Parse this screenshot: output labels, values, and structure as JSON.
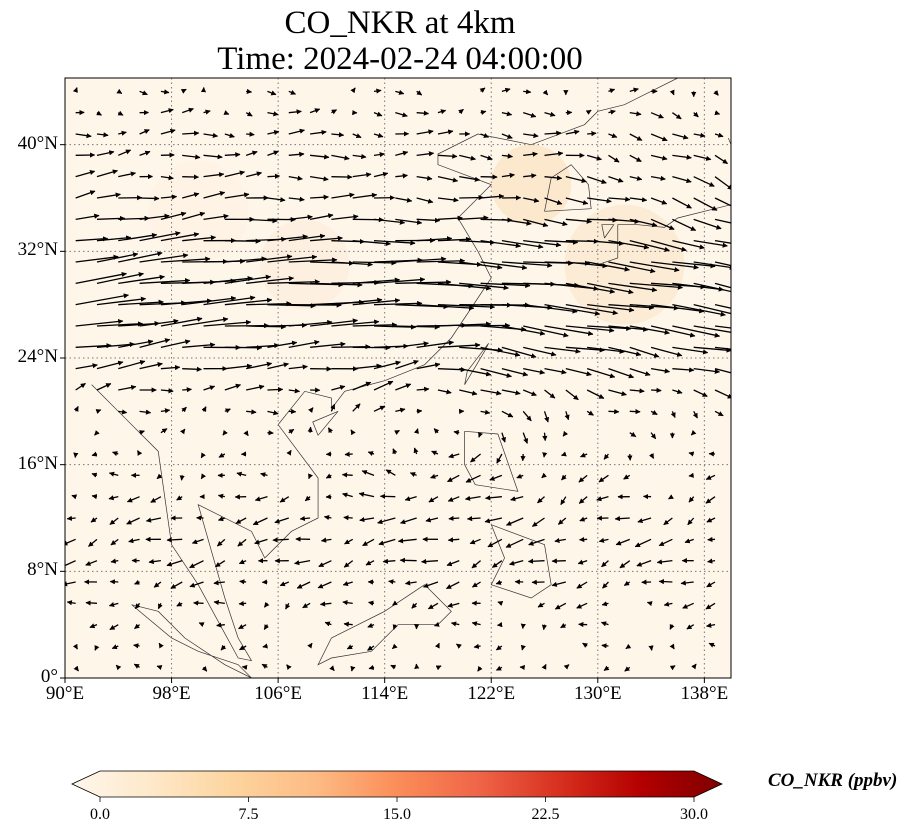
{
  "figure": {
    "title_line1": "CO_NKR at 4km",
    "title_line2": "Time: 2024-02-24 04:00:00"
  },
  "map": {
    "extent": {
      "lon_min": 90,
      "lon_max": 140,
      "lat_min": 0,
      "lat_max": 45
    },
    "projection": "PlateCarree",
    "background_color": "#fff6ea",
    "gridlines": "dotted gray",
    "lon_ticks": [
      {
        "value": 90,
        "label": "90°E"
      },
      {
        "value": 98,
        "label": "98°E"
      },
      {
        "value": 106,
        "label": "106°E"
      },
      {
        "value": 114,
        "label": "114°E"
      },
      {
        "value": 122,
        "label": "122°E"
      },
      {
        "value": 130,
        "label": "130°E"
      },
      {
        "value": 138,
        "label": "138°E"
      }
    ],
    "lat_ticks": [
      {
        "value": 0,
        "label": "0°"
      },
      {
        "value": 8,
        "label": "8°N"
      },
      {
        "value": 16,
        "label": "16°N"
      },
      {
        "value": 24,
        "label": "24°N"
      },
      {
        "value": 32,
        "label": "32°N"
      },
      {
        "value": 40,
        "label": "40°N"
      }
    ],
    "wind_vectors": "black quiver arrows: strong westerly jet between about 20°N and 35°N, anticyclonic circulation near 118°E 20°N, weaker easterlies over the tropics"
  },
  "colorbar": {
    "label": "CO_NKR (ppbv)",
    "colormap": "OrRd",
    "colors": [
      "#fff7ec",
      "#fee8c8",
      "#fdd49e",
      "#fdbb84",
      "#fc8d59",
      "#ef6548",
      "#d7301f",
      "#b30000",
      "#7f0000"
    ],
    "ticks": [
      {
        "value": 0,
        "label": "0.0"
      },
      {
        "value": 7.5,
        "label": "7.5"
      },
      {
        "value": 15,
        "label": "15.0"
      },
      {
        "value": 22.5,
        "label": "22.5"
      },
      {
        "value": 30,
        "label": "30.0"
      }
    ],
    "range": [
      0,
      30
    ],
    "extend": "both"
  }
}
